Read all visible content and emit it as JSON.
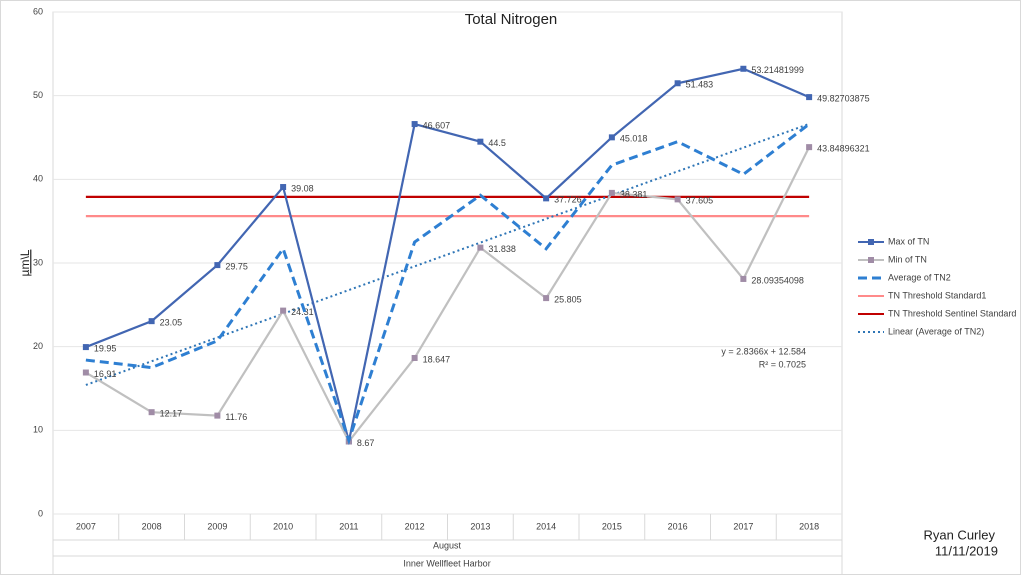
{
  "chart_data": {
    "type": "line",
    "title": "Total Nitrogen",
    "y_label": "µm\\L",
    "x_label": "August",
    "x_group_label": "Inner Wellfleet Harbor",
    "categories": [
      "2007",
      "2008",
      "2009",
      "2010",
      "2011",
      "2012",
      "2013",
      "2014",
      "2015",
      "2016",
      "2017",
      "2018"
    ],
    "ylim": [
      0,
      60
    ],
    "yticks": [
      0,
      10,
      20,
      30,
      40,
      50,
      60
    ],
    "grid": true,
    "legend": "right",
    "series": [
      {
        "name": "Max of TN",
        "color": "#4266b2",
        "style": "solid",
        "marker": "square",
        "values": [
          19.95,
          23.05,
          29.75,
          39.08,
          8.67,
          46.607,
          44.5,
          37.726,
          45.018,
          51.483,
          53.21481999,
          49.82703875
        ],
        "value_labels": [
          "19.95",
          "23.05",
          "29.75",
          "39.08",
          "8.67",
          "46.607",
          "44.5",
          "37.726",
          "45.018",
          "51.483",
          "53.21481999",
          "49.82703875"
        ]
      },
      {
        "name": "Min of TN",
        "color": "#c0c0c0",
        "marker_color": "#a08ca6",
        "style": "solid",
        "marker": "square",
        "values": [
          16.91,
          12.17,
          11.76,
          24.31,
          8.67,
          18.647,
          31.838,
          25.805,
          38.381,
          37.605,
          28.09354098,
          43.84896321
        ],
        "value_labels": [
          "16.91",
          "12.17",
          "11.76",
          "24.31",
          null,
          "18.647",
          "31.838",
          "25.805",
          "38.381",
          "37.605",
          "28.09354098",
          "43.84896321"
        ]
      },
      {
        "name": "Average of TN2",
        "color": "#2e7fd2",
        "style": "dashed",
        "marker": "none",
        "values": [
          18.4,
          17.5,
          20.7,
          31.7,
          8.8,
          32.5,
          38.1,
          31.7,
          41.7,
          44.5,
          40.6,
          46.6
        ]
      }
    ],
    "reference_lines": [
      {
        "name": "TN Threshold Standard1",
        "color": "#ff8a8a",
        "value": 35.6
      },
      {
        "name": "TN Threshold Sentinel Standard",
        "color": "#c00000",
        "value": 37.9
      }
    ],
    "trendline": {
      "name": "Linear (Average of TN2)",
      "color": "#2e75b6",
      "slope": 2.8366,
      "intercept": 12.584,
      "equation": "y = 2.8366x + 12.584",
      "r_squared": "R² = 0.7025"
    },
    "annotations": [
      "Ryan Curley",
      "11/11/2019"
    ]
  }
}
